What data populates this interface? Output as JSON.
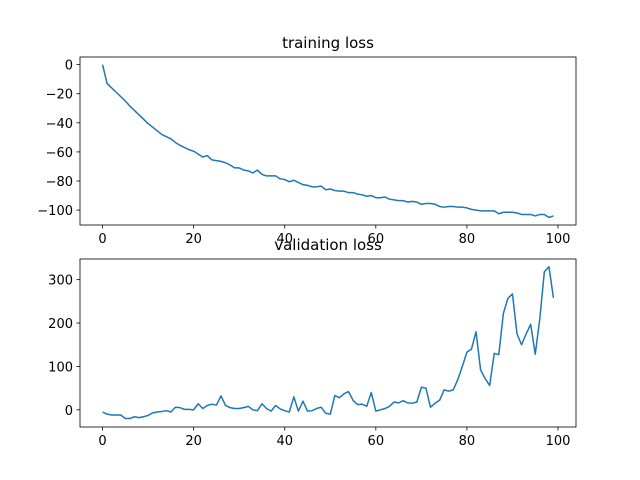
{
  "chart_data": [
    {
      "type": "line",
      "title": "training loss",
      "color": "#1f77b4",
      "x": [
        0,
        1,
        2,
        3,
        4,
        5,
        6,
        7,
        8,
        9,
        10,
        11,
        12,
        13,
        14,
        15,
        16,
        17,
        18,
        19,
        20,
        21,
        22,
        23,
        24,
        25,
        26,
        27,
        28,
        29,
        30,
        31,
        32,
        33,
        34,
        35,
        36,
        37,
        38,
        39,
        40,
        41,
        42,
        43,
        44,
        45,
        46,
        47,
        48,
        49,
        50,
        51,
        52,
        53,
        54,
        55,
        56,
        57,
        58,
        59,
        60,
        61,
        62,
        63,
        64,
        65,
        66,
        67,
        68,
        69,
        70,
        71,
        72,
        73,
        74,
        75,
        76,
        77,
        78,
        79,
        80,
        81,
        82,
        83,
        84,
        85,
        86,
        87,
        88,
        89,
        90,
        91,
        92,
        93,
        94,
        95,
        96,
        97,
        98,
        99
      ],
      "values": [
        0,
        -13,
        -16,
        -19,
        -22,
        -25,
        -28.5,
        -31.5,
        -34.5,
        -37.5,
        -40.5,
        -43,
        -45.5,
        -48,
        -49.5,
        -51,
        -53.5,
        -55.5,
        -57,
        -58.5,
        -59.5,
        -61.5,
        -63.5,
        -62.5,
        -65.5,
        -66,
        -66.5,
        -67.5,
        -69,
        -71,
        -71,
        -72.5,
        -73,
        -74.5,
        -72.5,
        -75.5,
        -76.5,
        -76.5,
        -76.5,
        -78.5,
        -79,
        -80.5,
        -79.5,
        -81,
        -82.5,
        -83,
        -84,
        -84,
        -83.5,
        -86,
        -85.5,
        -86.5,
        -87,
        -87,
        -88,
        -88,
        -89,
        -89.5,
        -90.5,
        -90,
        -91.5,
        -91.5,
        -91,
        -92.5,
        -93,
        -93.5,
        -93.5,
        -94.5,
        -94,
        -94.5,
        -96,
        -95.5,
        -95.5,
        -96,
        -97.5,
        -98,
        -97.5,
        -97.5,
        -98,
        -98,
        -98.5,
        -99.5,
        -100,
        -100.5,
        -100.5,
        -100.5,
        -100.5,
        -102.5,
        -101.5,
        -101.5,
        -101.5,
        -102,
        -103,
        -103,
        -103,
        -104,
        -103,
        -103,
        -105,
        -104
      ],
      "xlim": [
        -4.95,
        103.95
      ],
      "ylim": [
        -110.25,
        5.25
      ],
      "xticks": [
        0,
        20,
        40,
        60,
        80,
        100
      ],
      "yticks": [
        {
          "value": -100,
          "label": "−100"
        },
        {
          "value": -80,
          "label": "−80"
        },
        {
          "value": -60,
          "label": "−60"
        },
        {
          "value": -40,
          "label": "−40"
        },
        {
          "value": -20,
          "label": "−20"
        },
        0
      ]
    },
    {
      "type": "line",
      "title": "validation loss",
      "color": "#1f77b4",
      "x": [
        0,
        1,
        2,
        3,
        4,
        5,
        6,
        7,
        8,
        9,
        10,
        11,
        12,
        13,
        14,
        15,
        16,
        17,
        18,
        19,
        20,
        21,
        22,
        23,
        24,
        25,
        26,
        27,
        28,
        29,
        30,
        31,
        32,
        33,
        34,
        35,
        36,
        37,
        38,
        39,
        40,
        41,
        42,
        43,
        44,
        45,
        46,
        47,
        48,
        49,
        50,
        51,
        52,
        53,
        54,
        55,
        56,
        57,
        58,
        59,
        60,
        61,
        62,
        63,
        64,
        65,
        66,
        67,
        68,
        69,
        70,
        71,
        72,
        73,
        74,
        75,
        76,
        77,
        78,
        79,
        80,
        81,
        82,
        83,
        84,
        85,
        86,
        87,
        88,
        89,
        90,
        91,
        92,
        93,
        94,
        95,
        96,
        97,
        98,
        99
      ],
      "values": [
        -5,
        -10,
        -12,
        -12,
        -12,
        -20,
        -20,
        -16,
        -18,
        -16,
        -13,
        -7,
        -5,
        -4,
        -2,
        -5,
        6,
        5,
        1,
        1,
        0,
        14,
        3,
        10,
        13,
        11,
        32,
        10,
        5,
        3,
        3,
        5,
        8,
        0,
        -2,
        14,
        3,
        -3,
        10,
        2,
        -2,
        -5,
        30,
        -3,
        20,
        -3,
        -2,
        3,
        6,
        -8,
        -10,
        33,
        28,
        37,
        42,
        22,
        12,
        13,
        8,
        40,
        -3,
        0,
        3,
        8,
        18,
        16,
        21,
        16,
        15,
        18,
        52,
        50,
        6,
        15,
        22,
        46,
        43,
        46,
        70,
        100,
        133,
        140,
        180,
        92,
        72,
        56,
        130,
        127,
        222,
        257,
        267,
        175,
        150,
        175,
        197,
        128,
        210,
        318,
        330,
        258
      ],
      "xlim": [
        -4.95,
        103.95
      ],
      "ylim": [
        -39.6,
        347.6
      ],
      "xticks": [
        0,
        20,
        40,
        60,
        80,
        100
      ],
      "yticks": [
        0,
        100,
        200,
        300
      ]
    }
  ]
}
